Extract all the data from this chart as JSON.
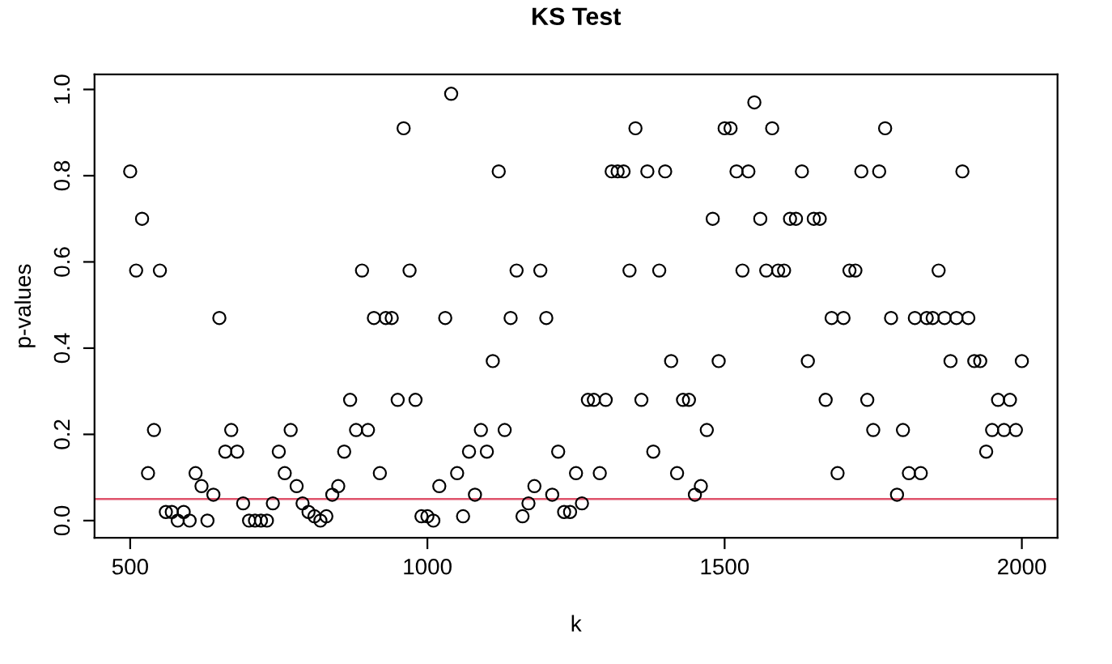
{
  "chart_data": {
    "type": "scatter",
    "title": "KS Test",
    "xlabel": "k",
    "ylabel": "p-values",
    "x": [
      500,
      510,
      520,
      530,
      540,
      550,
      560,
      570,
      580,
      590,
      600,
      610,
      620,
      630,
      640,
      650,
      660,
      670,
      680,
      690,
      700,
      710,
      720,
      730,
      740,
      750,
      760,
      770,
      780,
      790,
      800,
      810,
      820,
      830,
      840,
      850,
      860,
      870,
      880,
      890,
      900,
      910,
      920,
      930,
      940,
      950,
      960,
      970,
      980,
      990,
      1000,
      1010,
      1020,
      1030,
      1040,
      1050,
      1060,
      1070,
      1080,
      1090,
      1100,
      1110,
      1120,
      1130,
      1140,
      1150,
      1160,
      1170,
      1180,
      1190,
      1200,
      1210,
      1220,
      1230,
      1240,
      1250,
      1260,
      1270,
      1280,
      1290,
      1300,
      1310,
      1320,
      1330,
      1340,
      1350,
      1360,
      1370,
      1380,
      1390,
      1400,
      1410,
      1420,
      1430,
      1440,
      1450,
      1460,
      1470,
      1480,
      1490,
      1500,
      1510,
      1520,
      1530,
      1540,
      1550,
      1560,
      1570,
      1580,
      1590,
      1600,
      1610,
      1620,
      1630,
      1640,
      1650,
      1660,
      1670,
      1680,
      1690,
      1700,
      1710,
      1720,
      1730,
      1740,
      1750,
      1760,
      1770,
      1780,
      1790,
      1800,
      1810,
      1820,
      1830,
      1840,
      1850,
      1860,
      1870,
      1880,
      1890,
      1900,
      1910,
      1920,
      1930,
      1940,
      1950,
      1960,
      1970,
      1980,
      1990,
      2000
    ],
    "series": [
      {
        "color": "#000000",
        "values": [
          0.81,
          0.58,
          0.7,
          0.11,
          0.21,
          0.58,
          0.02,
          0.02,
          0.0,
          0.02,
          0.0,
          0.11,
          0.08,
          0.0,
          0.06,
          0.47,
          0.16,
          0.21,
          0.16,
          0.04,
          0.0,
          0.0,
          0.0,
          0.0,
          0.04,
          0.16,
          0.11,
          0.21,
          0.08,
          0.04,
          0.02,
          0.01,
          0.0,
          0.01,
          0.06,
          0.08,
          0.16,
          0.28,
          0.21,
          0.58,
          0.21,
          0.47,
          0.11,
          0.47,
          0.47,
          0.28,
          0.91,
          0.58,
          0.28,
          0.01,
          0.01,
          0.0,
          0.08,
          0.47,
          0.99,
          0.11,
          0.01,
          0.16,
          0.06,
          0.21,
          0.16,
          0.37,
          0.81,
          0.21,
          0.47,
          0.58,
          0.01,
          0.04,
          0.08,
          0.58,
          0.47,
          0.06,
          0.16,
          0.02,
          0.02,
          0.11,
          0.04,
          0.28,
          0.28,
          0.11,
          0.28,
          0.81,
          0.81,
          0.81,
          0.58,
          0.91,
          0.28,
          0.81,
          0.16,
          0.58,
          0.81,
          0.37,
          0.11,
          0.28,
          0.28,
          0.06,
          0.08,
          0.21,
          0.7,
          0.37,
          0.91,
          0.91,
          0.81,
          0.58,
          0.81,
          0.97,
          0.7,
          0.58,
          0.91,
          0.58,
          0.58,
          0.7,
          0.7,
          0.81,
          0.37,
          0.7,
          0.7,
          0.28,
          0.47,
          0.11,
          0.47,
          0.58,
          0.58,
          0.81,
          0.28,
          0.21,
          0.81,
          0.91,
          0.47,
          0.06,
          0.21,
          0.11,
          0.47,
          0.11,
          0.47,
          0.47,
          0.58,
          0.47,
          0.37,
          0.47,
          0.81,
          0.47,
          0.37,
          0.37,
          0.16,
          0.21,
          0.28,
          0.21,
          0.28,
          0.21,
          0.37
        ]
      }
    ],
    "marker": "circle",
    "xlim": [
      440,
      2060
    ],
    "xticks": [
      500,
      1000,
      1500,
      2000
    ],
    "ylim": [
      -0.04,
      1.035
    ],
    "yticks": [
      {
        "value": 0,
        "label": "0.0"
      },
      0.2,
      0.4,
      0.6,
      0.8,
      {
        "value": 1,
        "label": "1.0"
      }
    ],
    "ref_lines": [
      {
        "axis": "y",
        "value": 0.05,
        "color": "#df536b"
      }
    ],
    "grid": false
  }
}
